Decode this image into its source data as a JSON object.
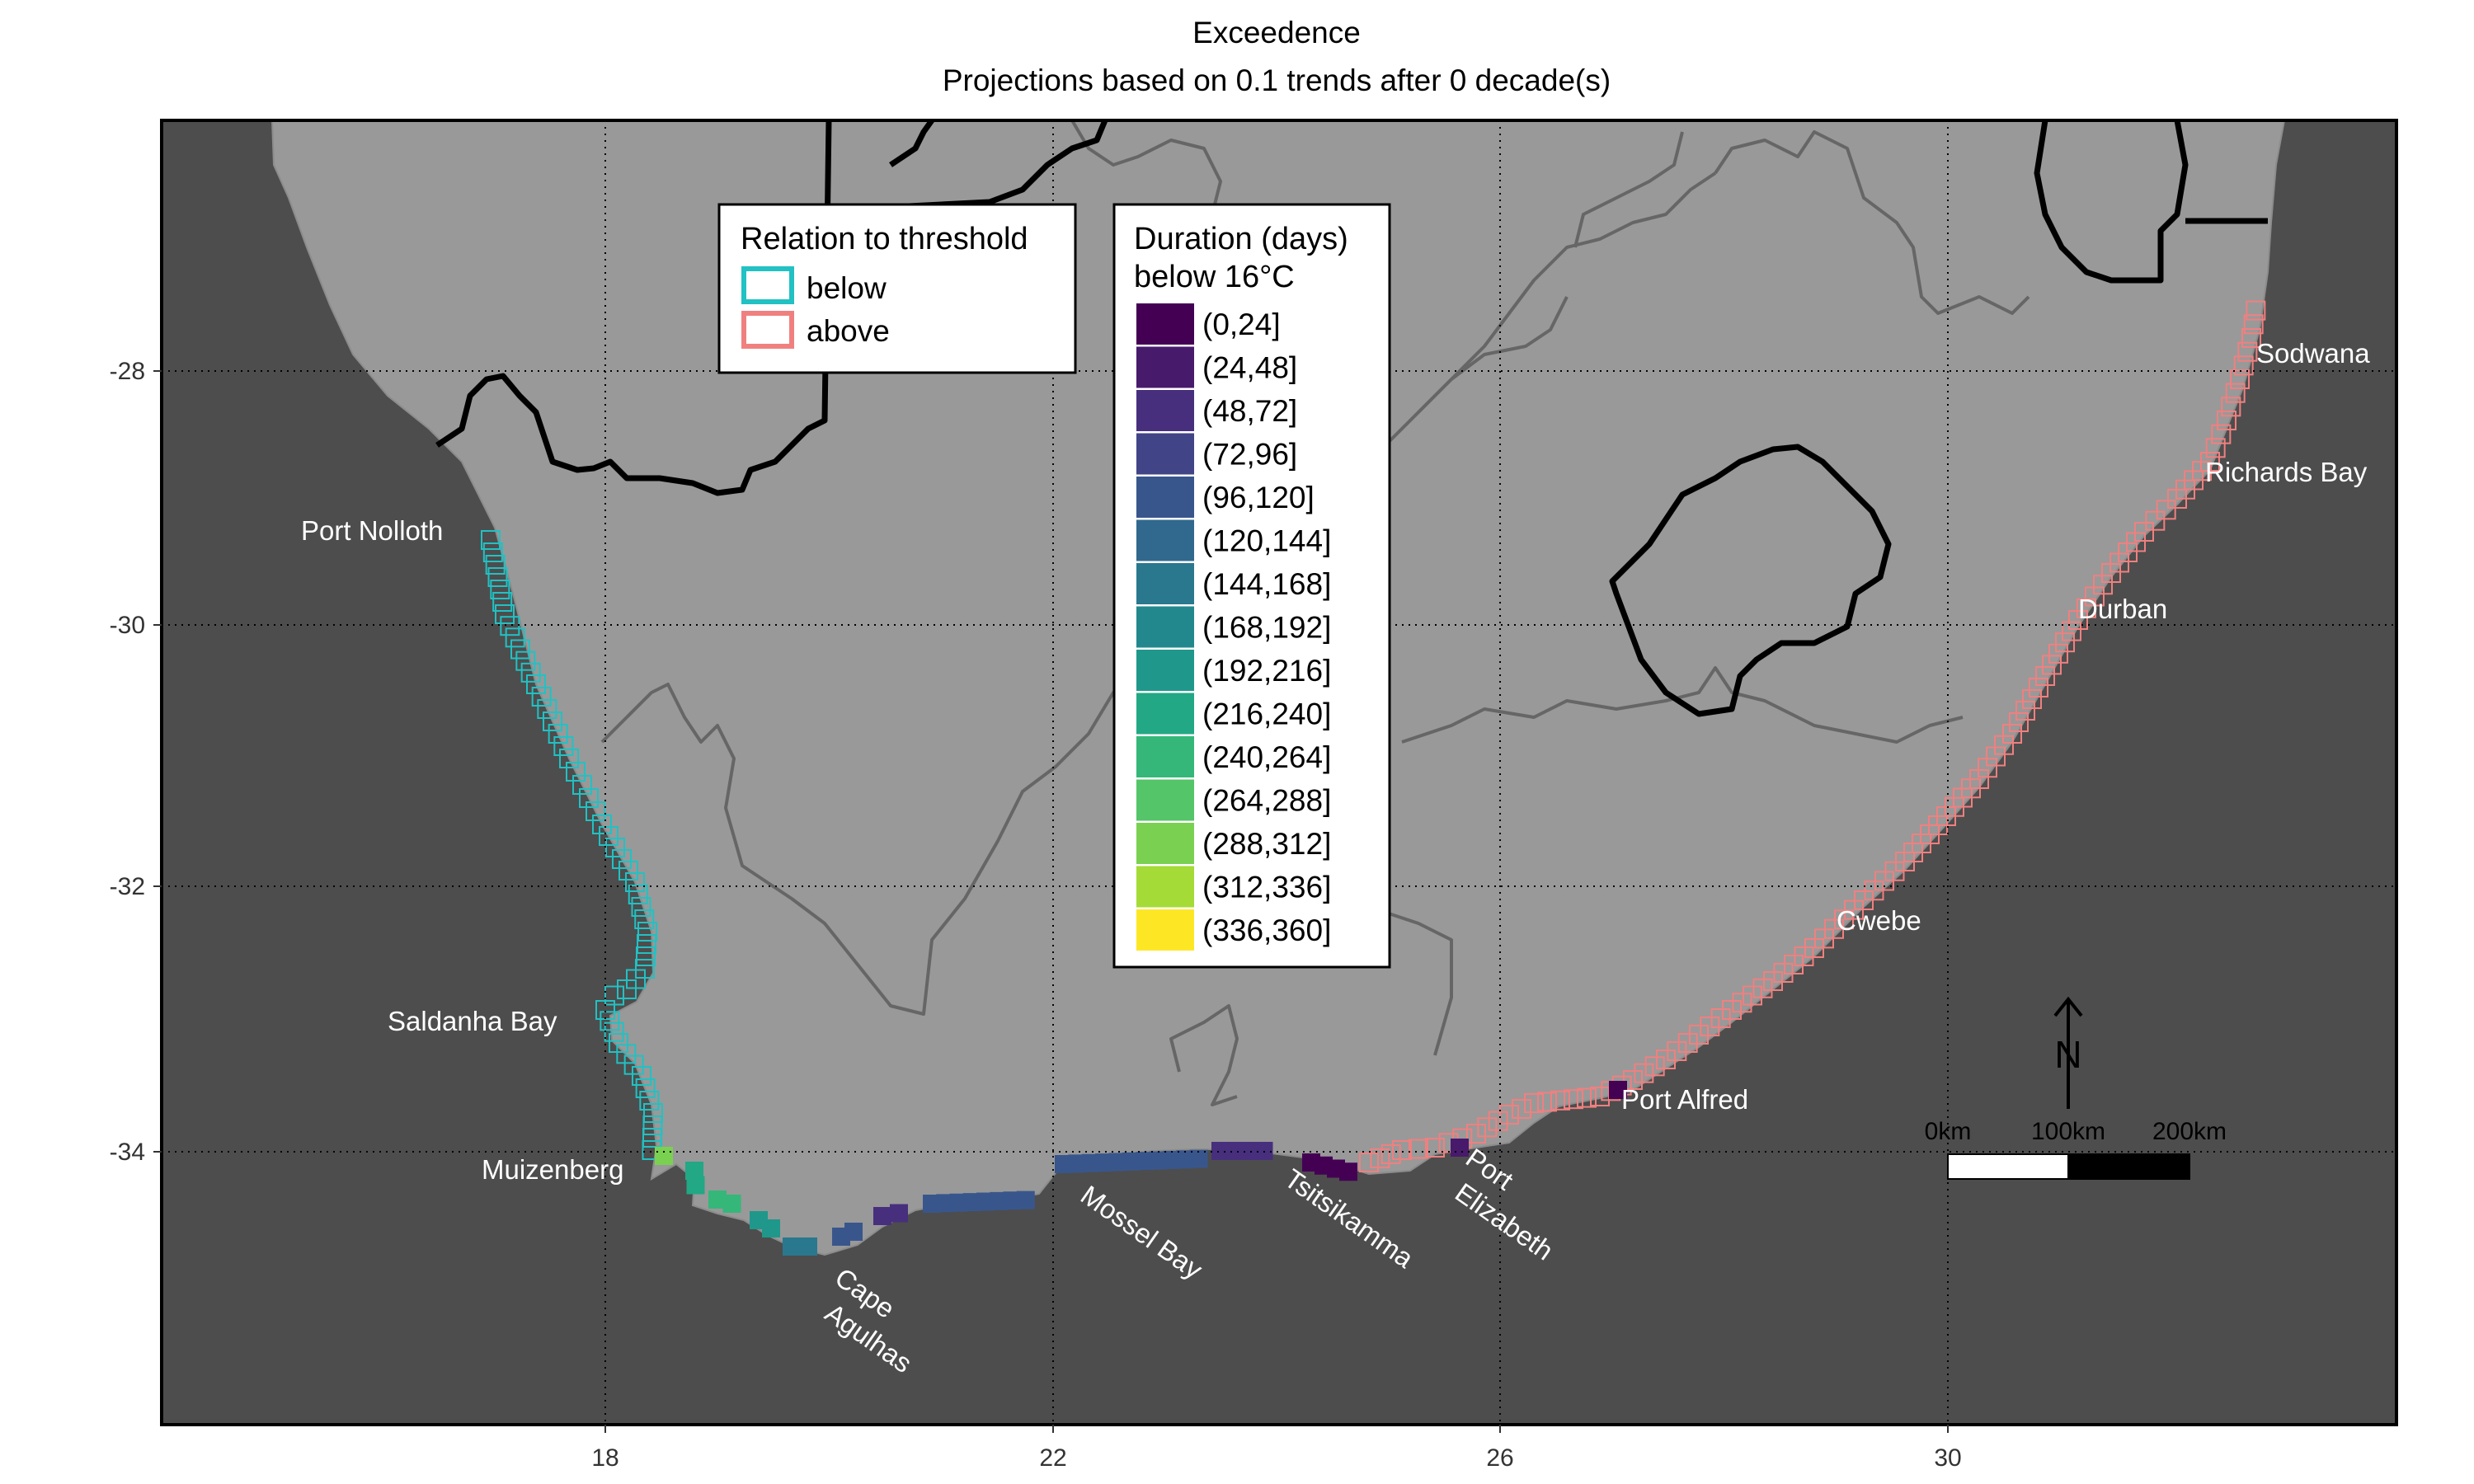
{
  "title": "Exceedence",
  "subtitle": "Projections based on  0.1  trends after  0  decade(s)",
  "axes": {
    "x_ticks": [
      "18",
      "22",
      "26",
      "30"
    ],
    "y_ticks": [
      "-28",
      "-30",
      "-32",
      "-34"
    ]
  },
  "colors": {
    "ocean": "#4d4d4d",
    "land": "#999999",
    "below": "#22c1c3",
    "above": "#f08080"
  },
  "places": [
    "Port Nolloth",
    "Saldanha Bay",
    "Muizenberg",
    "Cape",
    "Agulhas",
    "Mossel Bay",
    "Tsitsikamma",
    "Port",
    "Elizabeth",
    "Port Alfred",
    "Cwebe",
    "Durban",
    "Richards Bay",
    "Sodwana"
  ],
  "legend_relation": {
    "title": "Relation to threshold",
    "items": [
      {
        "label": "below",
        "color": "#22c1c3"
      },
      {
        "label": "above",
        "color": "#f08080"
      }
    ]
  },
  "legend_duration": {
    "title_line1": "Duration (days)",
    "title_line2": "below 16°C",
    "items": [
      {
        "label": "(0,24]",
        "color": "#440154"
      },
      {
        "label": "(24,48]",
        "color": "#481a6c"
      },
      {
        "label": "(48,72]",
        "color": "#472f7d"
      },
      {
        "label": "(72,96]",
        "color": "#414487"
      },
      {
        "label": "(96,120]",
        "color": "#39568c"
      },
      {
        "label": "(120,144]",
        "color": "#31688e"
      },
      {
        "label": "(144,168]",
        "color": "#2a788e"
      },
      {
        "label": "(168,192]",
        "color": "#23888e"
      },
      {
        "label": "(192,216]",
        "color": "#1f988b"
      },
      {
        "label": "(216,240]",
        "color": "#22a884"
      },
      {
        "label": "(240,264]",
        "color": "#35b779"
      },
      {
        "label": "(264,288]",
        "color": "#54c568"
      },
      {
        "label": "(288,312]",
        "color": "#7ad151"
      },
      {
        "label": "(312,336]",
        "color": "#a5db36"
      },
      {
        "label": "(336,360]",
        "color": "#fde725"
      }
    ]
  },
  "scalebar": {
    "north": "N",
    "labels": [
      "0km",
      "100km",
      "200km"
    ]
  }
}
